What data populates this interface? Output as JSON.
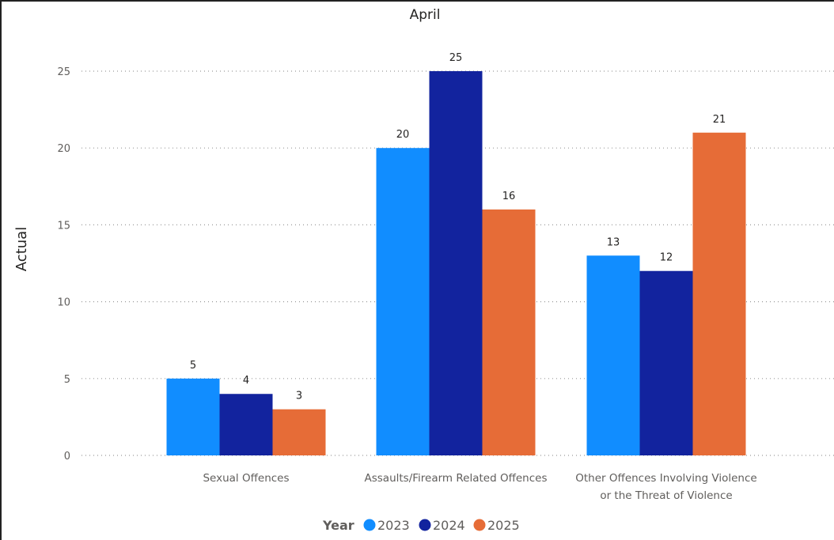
{
  "chart_data": {
    "type": "bar",
    "title": "April",
    "xlabel": "",
    "ylabel": "Actual",
    "ylim": [
      0,
      25
    ],
    "yticks": [
      0,
      5,
      10,
      15,
      20,
      25
    ],
    "grid": true,
    "legend_title": "Year",
    "legend_position": "bottom",
    "categories": [
      [
        "Sexual Offences"
      ],
      [
        "Assaults/Firearm Related Offences"
      ],
      [
        "Other Offences Involving Violence",
        "or the Threat of Violence"
      ]
    ],
    "series": [
      {
        "name": "2023",
        "color": "#118dff",
        "values": [
          5,
          20,
          13
        ]
      },
      {
        "name": "2024",
        "color": "#12239e",
        "values": [
          4,
          25,
          12
        ]
      },
      {
        "name": "2025",
        "color": "#e66c37",
        "values": [
          3,
          16,
          21
        ]
      }
    ]
  }
}
